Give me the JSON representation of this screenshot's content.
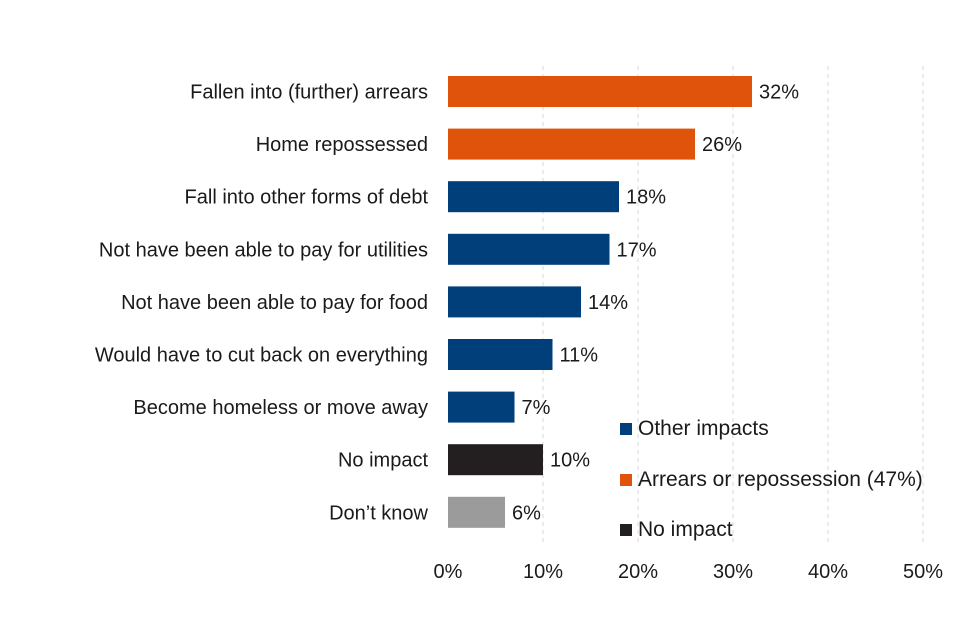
{
  "chart_data": {
    "type": "bar",
    "orientation": "horizontal",
    "categories": [
      "Fallen into (further) arrears",
      "Home repossessed",
      "Fall into other forms of debt",
      "Not have been able to pay for utilities",
      "Not have been able to pay for food",
      "Would have to cut back on everything",
      "Become homeless or move away",
      "No impact",
      "Don’t know"
    ],
    "values": [
      32,
      26,
      18,
      17,
      14,
      11,
      7,
      10,
      6
    ],
    "value_labels": [
      "32%",
      "26%",
      "18%",
      "17%",
      "14%",
      "11%",
      "7%",
      "10%",
      "6%"
    ],
    "groups": [
      "arrears",
      "arrears",
      "other",
      "other",
      "other",
      "other",
      "other",
      "none",
      "dontknow"
    ],
    "xlim": [
      0,
      50
    ],
    "x_ticks": [
      0,
      10,
      20,
      30,
      40,
      50
    ],
    "x_tick_labels": [
      "0%",
      "10%",
      "20%",
      "30%",
      "40%",
      "50%"
    ],
    "grid": "vertical dashed",
    "colors": {
      "other": "#003f7a",
      "arrears": "#e0530a",
      "none": "#231f20",
      "dontknow": "#9b9b9b",
      "grid": "#d9d9d9"
    },
    "legend": {
      "position": "bottom-right",
      "items": [
        {
          "label": "Other impacts",
          "group": "other"
        },
        {
          "label": "Arrears or repossession (47%)",
          "group": "arrears"
        },
        {
          "label": "No impact",
          "group": "none"
        }
      ]
    }
  }
}
